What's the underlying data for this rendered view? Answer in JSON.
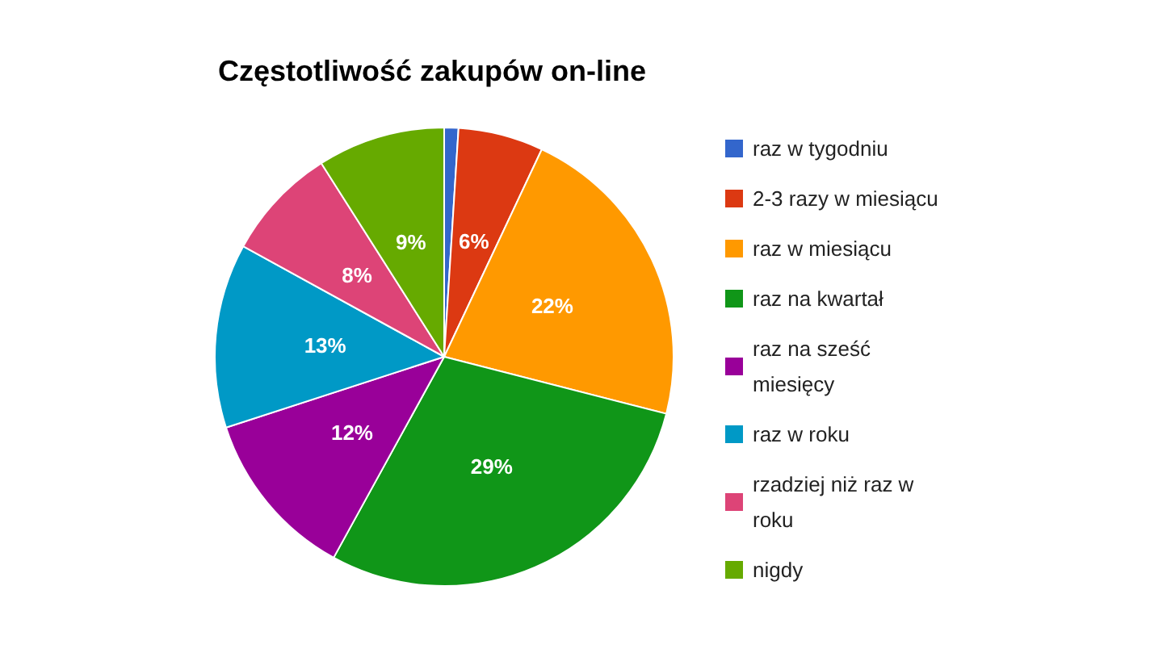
{
  "chart_data": {
    "type": "pie",
    "title": "Częstotliwość zakupów on-line",
    "categories": [
      "raz w tygodniu",
      "2-3 razy w miesiącu",
      "raz w miesiącu",
      "raz na kwartał",
      "raz na sześć miesięcy",
      "raz w roku",
      "rzadziej niż raz w roku",
      "nigdy"
    ],
    "values": [
      1,
      6,
      22,
      29,
      12,
      13,
      8,
      9
    ],
    "value_labels": [
      null,
      "6%",
      "22%",
      "29%",
      "12%",
      "13%",
      "8%",
      "9%"
    ],
    "colors": [
      "#3366cc",
      "#dc3912",
      "#ff9900",
      "#109618",
      "#990099",
      "#0099c6",
      "#dd4477",
      "#66aa00"
    ],
    "legend": "right"
  }
}
